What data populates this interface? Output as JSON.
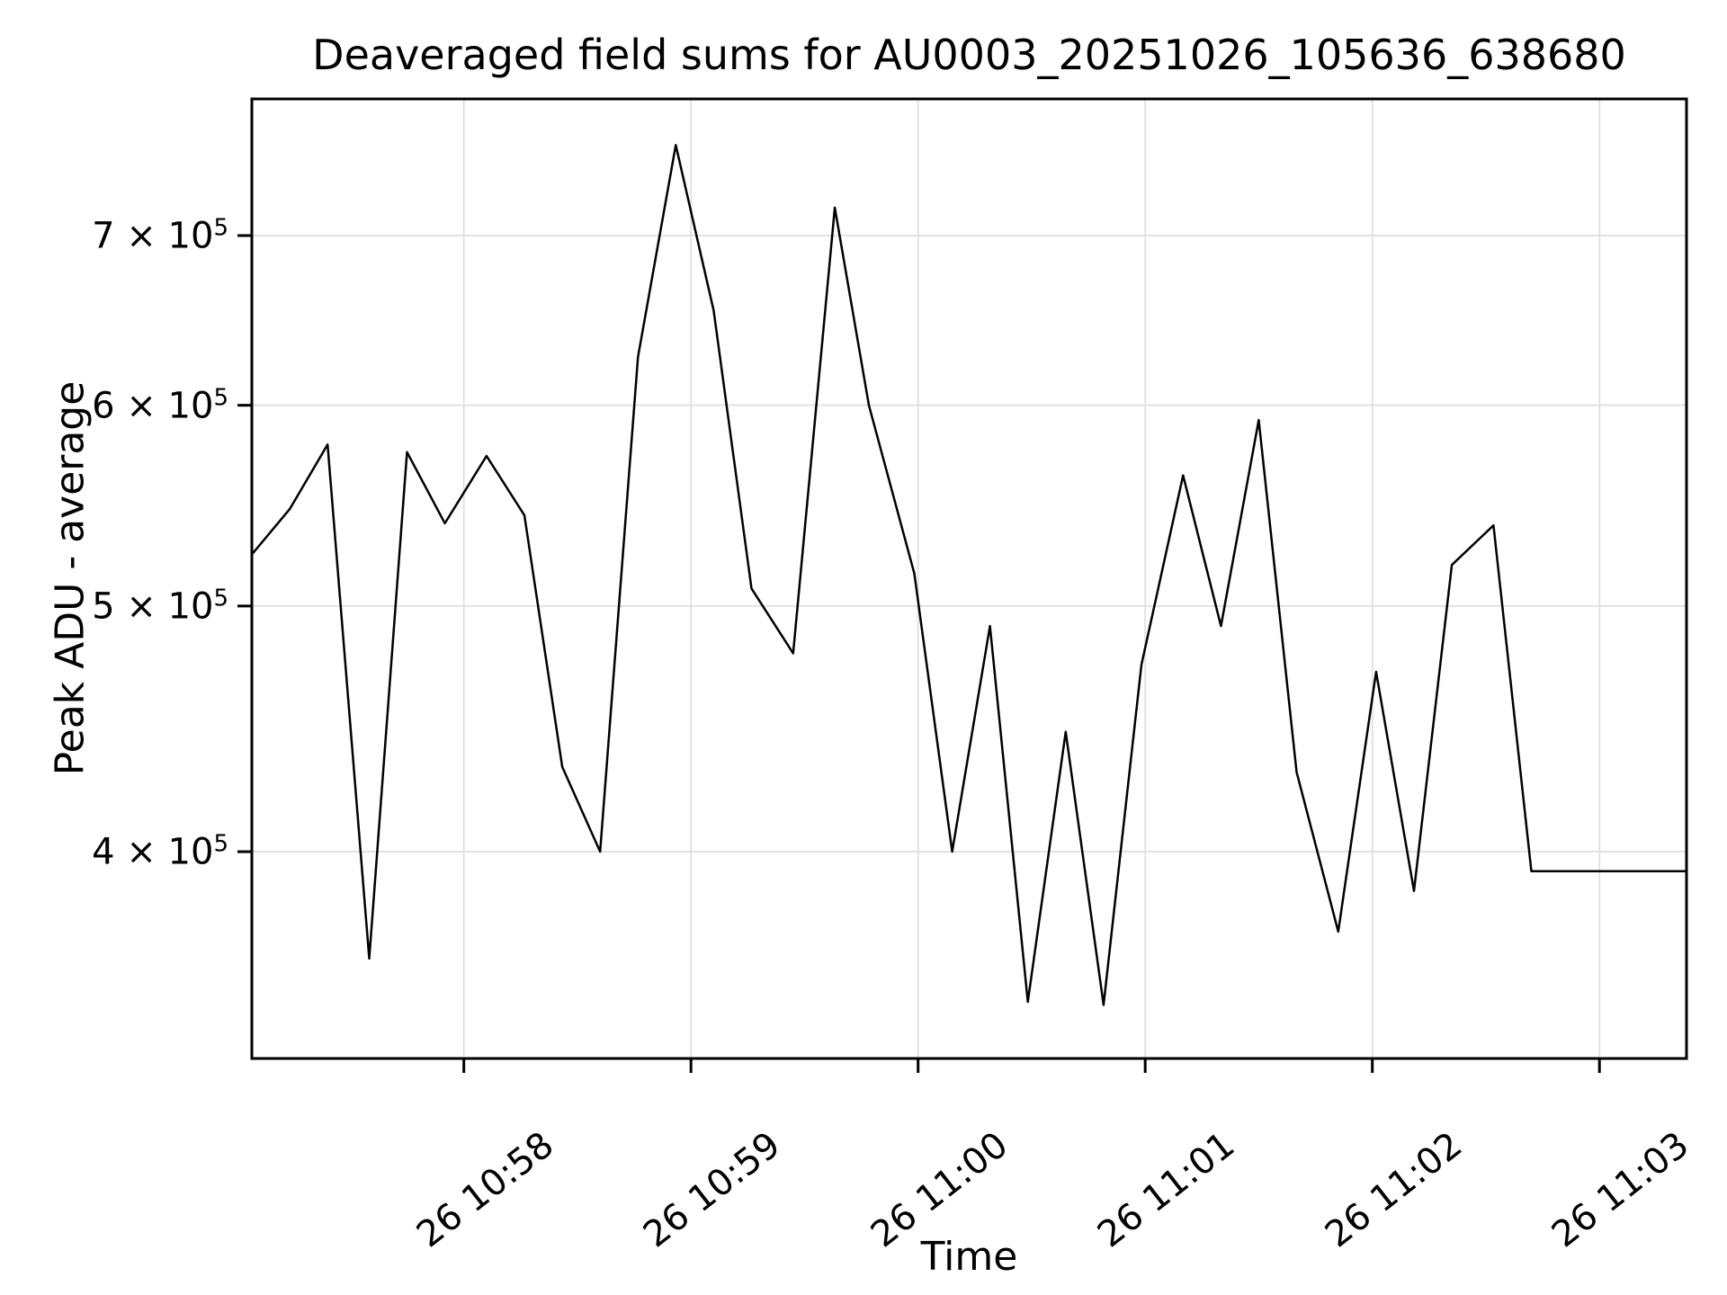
{
  "figure": {
    "background": "#ffffff"
  },
  "chart_data": {
    "type": "line",
    "title": "Deaveraged field sums for AU0003_20251026_105636_638680",
    "xlabel": "Time",
    "ylabel": "Peak ADU - average",
    "yscale": "log",
    "grid": true,
    "legend": "none",
    "grid_color": "#e2e2e2",
    "line_color": "#000000",
    "spine_color": "#000000",
    "tick_color": "#000000",
    "xlim": [
      "10:57:04",
      "11:03:23"
    ],
    "ylim": [
      331500,
      792500
    ],
    "x_ticks": [
      {
        "time": "10:58:00",
        "label": "26 10:58"
      },
      {
        "time": "10:59:00",
        "label": "26 10:59"
      },
      {
        "time": "11:00:00",
        "label": "26 11:00"
      },
      {
        "time": "11:01:00",
        "label": "26 11:01"
      },
      {
        "time": "11:02:00",
        "label": "26 11:02"
      },
      {
        "time": "11:03:00",
        "label": "26 11:03"
      }
    ],
    "y_ticks": [
      {
        "value": 400000,
        "label": "4 × 10^5"
      },
      {
        "value": 500000,
        "label": "5 × 10^5"
      },
      {
        "value": 600000,
        "label": "6 × 10^5"
      },
      {
        "value": 700000,
        "label": "7 × 10^5"
      }
    ],
    "series": [
      {
        "name": "Peak ADU - average",
        "points": [
          [
            "10:57:04",
            524000
          ],
          [
            "10:57:14",
            546000
          ],
          [
            "10:57:24",
            579000
          ],
          [
            "10:57:35",
            363000
          ],
          [
            "10:57:45",
            575000
          ],
          [
            "10:57:55",
            539000
          ],
          [
            "10:58:06",
            573000
          ],
          [
            "10:58:16",
            543000
          ],
          [
            "10:58:26",
            432000
          ],
          [
            "10:58:36",
            400000
          ],
          [
            "10:58:46",
            627000
          ],
          [
            "10:58:56",
            760000
          ],
          [
            "10:59:06",
            654000
          ],
          [
            "10:59:16",
            508000
          ],
          [
            "10:59:27",
            479000
          ],
          [
            "10:59:38",
            718000
          ],
          [
            "10:59:47",
            600000
          ],
          [
            "10:59:59",
            515000
          ],
          [
            "11:00:09",
            400000
          ],
          [
            "11:00:19",
            491000
          ],
          [
            "11:00:29",
            349000
          ],
          [
            "11:00:39",
            446000
          ],
          [
            "11:00:49",
            348000
          ],
          [
            "11:00:59",
            474000
          ],
          [
            "11:01:10",
            563000
          ],
          [
            "11:01:20",
            491000
          ],
          [
            "11:01:30",
            592000
          ],
          [
            "11:01:40",
            430000
          ],
          [
            "11:01:51",
            372000
          ],
          [
            "11:02:01",
            471000
          ],
          [
            "11:02:11",
            386000
          ],
          [
            "11:02:21",
            519000
          ],
          [
            "11:02:32",
            538000
          ],
          [
            "11:02:42",
            393000
          ],
          [
            "11:02:52",
            393000
          ],
          [
            "11:03:02",
            393000
          ],
          [
            "11:03:12",
            393000
          ],
          [
            "11:03:23",
            393000
          ]
        ]
      }
    ]
  }
}
